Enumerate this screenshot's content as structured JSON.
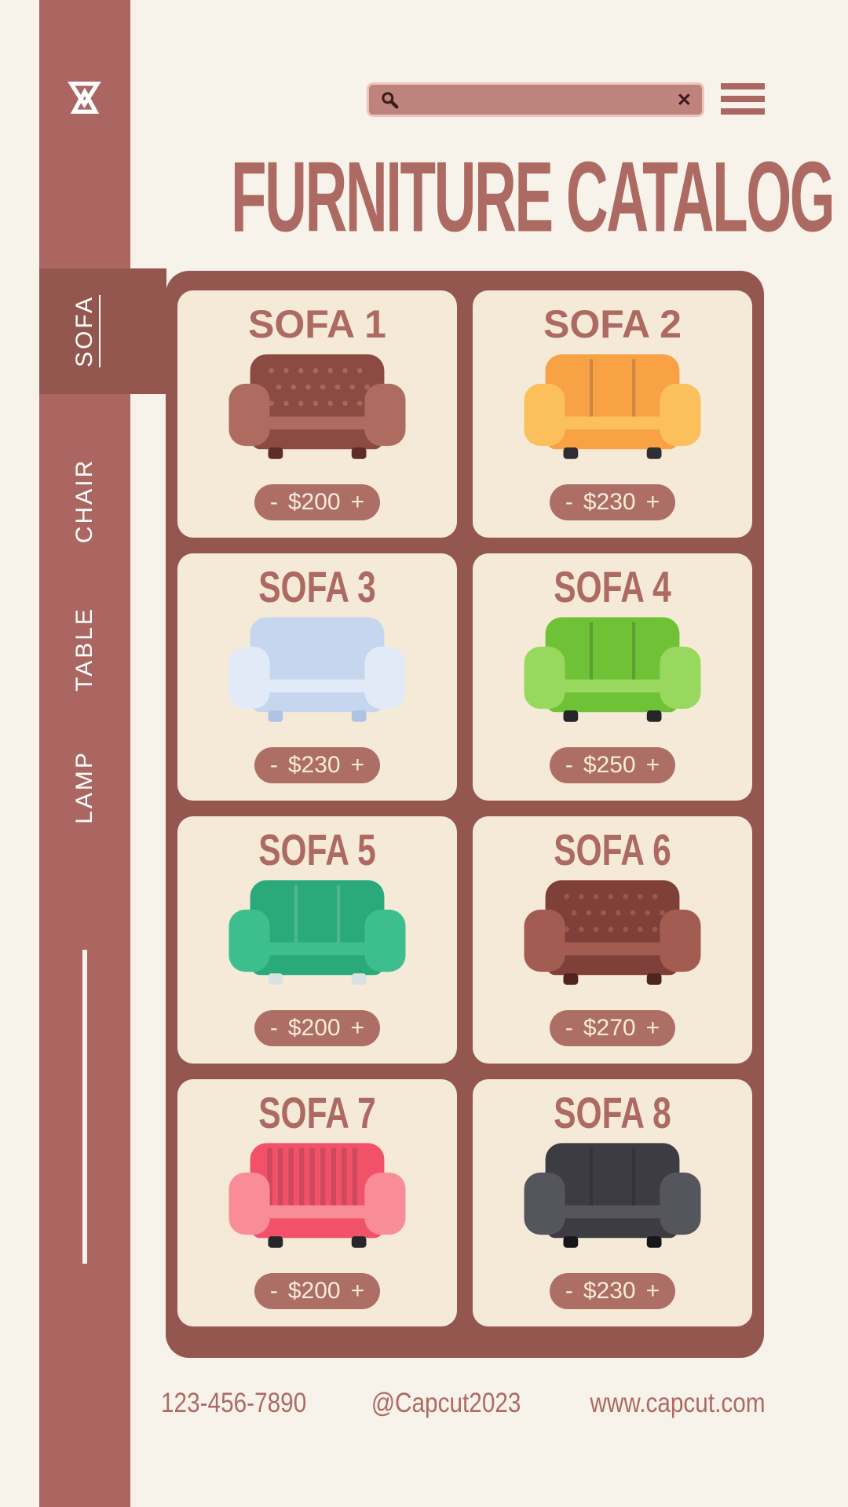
{
  "app": {
    "title_label": "FURNITURE CATALOG"
  },
  "colors": {
    "background": "#F7F3EB",
    "sidebar": "#AC6661",
    "panel": "#935750",
    "active_tab": "#935750",
    "card": "#F5EAD7",
    "accent_text": "#AD6A62",
    "pill_bg": "#AD6E66",
    "pill_text": "#F6ECDA",
    "search_fill": "#BF837D",
    "search_border": "#ECC4BD",
    "icon_dark": "#3A1B18",
    "tab_text": "#FFFFFF"
  },
  "topbar": {
    "logo_icon": "capcut-logo-icon",
    "search": {
      "value": "",
      "placeholder": "",
      "search_icon": "magnifier-icon",
      "clear_icon": "✕"
    },
    "menu_icon": "hamburger-menu-icon"
  },
  "sidebar": {
    "tabs": [
      {
        "label": "SOFA",
        "active": true
      },
      {
        "label": "CHAIR",
        "active": false
      },
      {
        "label": "TABLE",
        "active": false
      },
      {
        "label": "LAMP",
        "active": false
      }
    ]
  },
  "catalog": {
    "items": [
      {
        "title": "SOFA 1",
        "minus": "-",
        "price": "$200",
        "plus": "+",
        "condensed": false,
        "pattern": "tuft",
        "colors": {
          "body": "#8B4A42",
          "accent": "#AE6B60",
          "dark": "#5E2D27"
        }
      },
      {
        "title": "SOFA 2",
        "minus": "-",
        "price": "$230",
        "plus": "+",
        "condensed": false,
        "pattern": "seams",
        "colors": {
          "body": "#F9A145",
          "accent": "#FBC05C",
          "dark": "#2F2F33"
        }
      },
      {
        "title": "SOFA 3",
        "minus": "-",
        "price": "$230",
        "plus": "+",
        "condensed": true,
        "pattern": "none",
        "colors": {
          "body": "#C7D6EF",
          "accent": "#E2EAF8",
          "dark": "#AFC3E4"
        }
      },
      {
        "title": "SOFA 4",
        "minus": "-",
        "price": "$250",
        "plus": "+",
        "condensed": true,
        "pattern": "seams",
        "colors": {
          "body": "#6FC236",
          "accent": "#98D85F",
          "dark": "#26262A"
        }
      },
      {
        "title": "SOFA 5",
        "minus": "-",
        "price": "$200",
        "plus": "+",
        "condensed": true,
        "pattern": "seams",
        "colors": {
          "body": "#2AA97A",
          "accent": "#3CBF8C",
          "dark": "#D8E2E4"
        }
      },
      {
        "title": "SOFA 6",
        "minus": "-",
        "price": "$270",
        "plus": "+",
        "condensed": true,
        "pattern": "tuft",
        "colors": {
          "body": "#7E4038",
          "accent": "#A35C52",
          "dark": "#4F241F"
        }
      },
      {
        "title": "SOFA 7",
        "minus": "-",
        "price": "$200",
        "plus": "+",
        "condensed": true,
        "pattern": "stripes",
        "colors": {
          "body": "#F2516A",
          "accent": "#F98D97",
          "dark": "#27272B"
        }
      },
      {
        "title": "SOFA 8",
        "minus": "-",
        "price": "$230",
        "plus": "+",
        "condensed": true,
        "pattern": "seams",
        "colors": {
          "body": "#3C3C42",
          "accent": "#55555D",
          "dark": "#17171B"
        }
      }
    ]
  },
  "footer": {
    "phone": "123-456-7890",
    "social": "@Capcut2023",
    "website": "www.capcut.com"
  }
}
